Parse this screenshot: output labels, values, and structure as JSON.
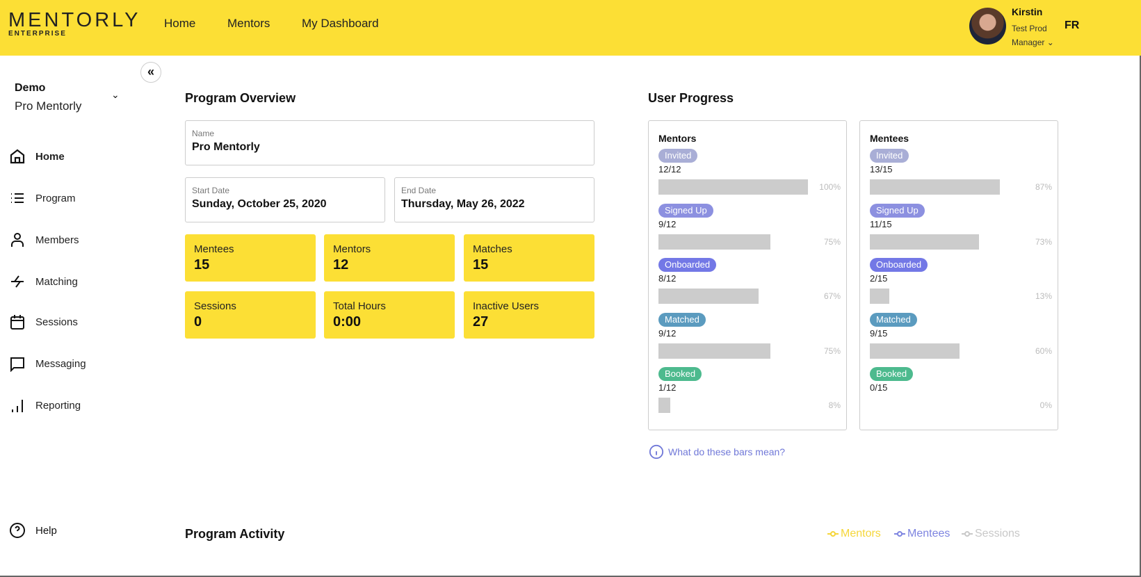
{
  "header": {
    "logo": "MENTORLY",
    "logo_sub": "ENTERPRISE",
    "nav": [
      "Home",
      "Mentors",
      "My Dashboard"
    ],
    "user_name": "Kirstin",
    "user_role_line1": "Test Prod",
    "user_role_line2": "Manager",
    "language": "FR"
  },
  "sidebar": {
    "org": "Demo",
    "program": "Pro Mentorly",
    "items": [
      {
        "label": "Home",
        "icon": "home-icon"
      },
      {
        "label": "Program",
        "icon": "list-icon"
      },
      {
        "label": "Members",
        "icon": "person-icon"
      },
      {
        "label": "Matching",
        "icon": "arrows-icon"
      },
      {
        "label": "Sessions",
        "icon": "calendar-icon"
      },
      {
        "label": "Messaging",
        "icon": "chat-icon"
      },
      {
        "label": "Reporting",
        "icon": "bar-chart-icon"
      }
    ],
    "help": "Help"
  },
  "overview": {
    "title": "Program Overview",
    "name_label": "Name",
    "name": "Pro Mentorly",
    "start_label": "Start Date",
    "start": "Sunday, October 25, 2020",
    "end_label": "End Date",
    "end": "Thursday, May 26, 2022",
    "stats": [
      {
        "label": "Mentees",
        "value": "15"
      },
      {
        "label": "Mentors",
        "value": "12"
      },
      {
        "label": "Matches",
        "value": "15"
      },
      {
        "label": "Sessions",
        "value": "0"
      },
      {
        "label": "Total Hours",
        "value": "0:00"
      },
      {
        "label": "Inactive Users",
        "value": "27"
      }
    ]
  },
  "progress": {
    "title": "User Progress",
    "help": "What do these bars mean?",
    "stage_colors": {
      "Invited": "#A9AED6",
      "Signed Up": "#8C90E0",
      "Onboarded": "#7378E6",
      "Matched": "#5B9BBF",
      "Booked": "#4DBA8E"
    },
    "cards": [
      {
        "title": "Mentors",
        "stages": [
          {
            "label": "Invited",
            "count": "12/12",
            "pct": "100%",
            "fraction": 1.0
          },
          {
            "label": "Signed Up",
            "count": "9/12",
            "pct": "75%",
            "fraction": 0.75
          },
          {
            "label": "Onboarded",
            "count": "8/12",
            "pct": "67%",
            "fraction": 0.67
          },
          {
            "label": "Matched",
            "count": "9/12",
            "pct": "75%",
            "fraction": 0.75
          },
          {
            "label": "Booked",
            "count": "1/12",
            "pct": "8%",
            "fraction": 0.08
          }
        ]
      },
      {
        "title": "Mentees",
        "stages": [
          {
            "label": "Invited",
            "count": "13/15",
            "pct": "87%",
            "fraction": 0.87
          },
          {
            "label": "Signed Up",
            "count": "11/15",
            "pct": "73%",
            "fraction": 0.73
          },
          {
            "label": "Onboarded",
            "count": "2/15",
            "pct": "13%",
            "fraction": 0.13
          },
          {
            "label": "Matched",
            "count": "9/15",
            "pct": "60%",
            "fraction": 0.6
          },
          {
            "label": "Booked",
            "count": "0/15",
            "pct": "0%",
            "fraction": 0
          }
        ]
      }
    ]
  },
  "activity": {
    "title": "Program Activity",
    "legend": [
      {
        "label": "Mentors",
        "color": "#F5D63A"
      },
      {
        "label": "Mentees",
        "color": "#7D84E0"
      },
      {
        "label": "Sessions",
        "color": "#C8C8C8"
      }
    ]
  }
}
